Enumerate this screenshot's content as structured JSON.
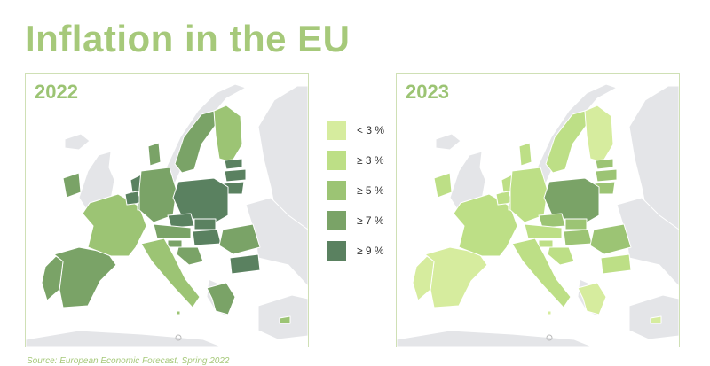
{
  "title": "Inflation in the EU",
  "panels": [
    {
      "year": "2022"
    },
    {
      "year": "2023"
    }
  ],
  "legend": {
    "items": [
      {
        "label": "< 3 %",
        "color": "#d6ec9e"
      },
      {
        "label": "≥ 3 %",
        "color": "#bddf86"
      },
      {
        "label": "≥ 5 %",
        "color": "#9cc474"
      },
      {
        "label": "≥ 7 %",
        "color": "#7aa367"
      },
      {
        "label": "≥ 9 %",
        "color": "#5a8160"
      }
    ]
  },
  "colors": {
    "non_eu": "#e4e5e8",
    "border": "#ffffff",
    "title": "#a6c97a",
    "panel_border": "#cfe0b5"
  },
  "map_data": {
    "2022": {
      "ES": "≥ 7 %",
      "PT": "≥ 7 %",
      "FR": "≥ 5 %",
      "IE": "≥ 7 %",
      "BE": "≥ 9 %",
      "NL": "≥ 9 %",
      "LU": "≥ 7 %",
      "DE": "≥ 7 %",
      "DK": "≥ 7 %",
      "SE": "≥ 7 %",
      "FI": "≥ 5 %",
      "EE": "≥ 9 %",
      "LV": "≥ 9 %",
      "LT": "≥ 9 %",
      "PL": "≥ 9 %",
      "CZ": "≥ 9 %",
      "SK": "≥ 9 %",
      "HU": "≥ 9 %",
      "AT": "≥ 7 %",
      "SI": "≥ 7 %",
      "HR": "≥ 7 %",
      "IT": "≥ 5 %",
      "RO": "≥ 7 %",
      "BG": "≥ 9 %",
      "GR": "≥ 7 %",
      "CY": "≥ 5 %",
      "MT": "≥ 5 %"
    },
    "2023": {
      "ES": "< 3 %",
      "PT": "< 3 %",
      "FR": "≥ 3 %",
      "IE": "≥ 3 %",
      "BE": "≥ 3 %",
      "NL": "≥ 3 %",
      "LU": "≥ 3 %",
      "DE": "≥ 3 %",
      "DK": "≥ 3 %",
      "SE": "≥ 3 %",
      "FI": "< 3 %",
      "EE": "≥ 5 %",
      "LV": "≥ 5 %",
      "LT": "≥ 5 %",
      "PL": "≥ 7 %",
      "CZ": "≥ 5 %",
      "SK": "≥ 5 %",
      "HU": "≥ 5 %",
      "AT": "≥ 3 %",
      "SI": "≥ 3 %",
      "HR": "≥ 3 %",
      "IT": "≥ 3 %",
      "RO": "≥ 5 %",
      "BG": "≥ 3 %",
      "GR": "< 3 %",
      "CY": "< 3 %",
      "MT": "< 3 %"
    }
  },
  "source": "Source: European Economic Forecast, Spring 2022"
}
